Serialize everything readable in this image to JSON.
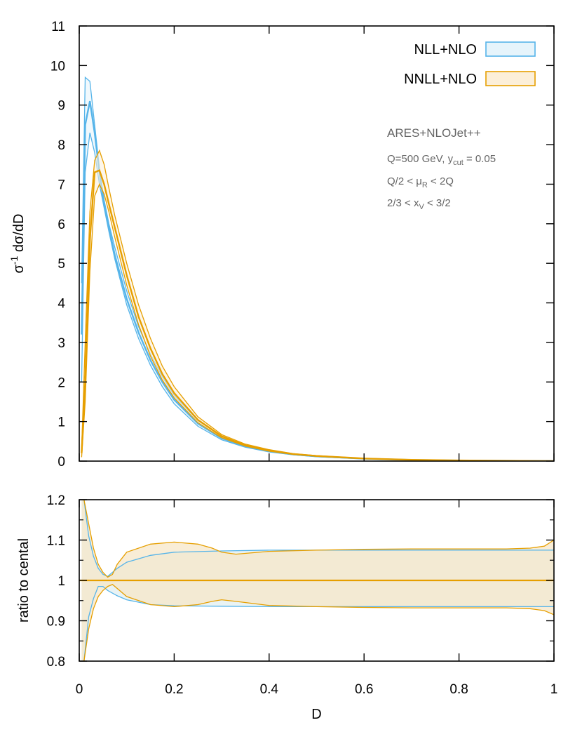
{
  "chart_data": [
    {
      "type": "line",
      "panel": "main",
      "xlim": [
        0,
        1
      ],
      "ylim": [
        0,
        11
      ],
      "ylabel": "σ-1 dσ/dD",
      "ylabel_base": "σ",
      "ylabel_sup": "-1",
      "ylabel_rest": " dσ/dD",
      "xticks": [
        0,
        0.2,
        0.4,
        0.6,
        0.8,
        1
      ],
      "yticks": [
        0,
        1,
        2,
        3,
        4,
        5,
        6,
        7,
        8,
        9,
        10,
        11
      ],
      "yticklabels": [
        "0",
        "1",
        "2",
        "3",
        "4",
        "5",
        "6",
        "7",
        "8",
        "9",
        "10",
        "11"
      ],
      "legend_position": "top-right",
      "grid": false,
      "legend": [
        {
          "name": "NLL+NLO",
          "color": "#56b4e9",
          "fill": "#e6f4fb"
        },
        {
          "name": "NNLL+NLO",
          "color": "#e69f00",
          "fill": "#fcefd9"
        }
      ],
      "annotations": {
        "line1": "ARES+NLOJet++",
        "line2_pre": "Q=500 GeV, y",
        "line2_sub": "cut",
        "line2_post": " = 0.05",
        "line3_pre": "Q/2 < μ",
        "line3_sub": "R",
        "line3_post": " < 2Q",
        "line4_pre": "2/3 < x",
        "line4_sub": "V",
        "line4_post": " < 3/2"
      },
      "series": [
        {
          "name": "NLL+NLO",
          "color": "#56b4e9",
          "fill": "#e6f4fb",
          "x": [
            0.005,
            0.0125,
            0.0225,
            0.0325,
            0.0425,
            0.0525,
            0.0625,
            0.075,
            0.1,
            0.125,
            0.15,
            0.175,
            0.2,
            0.25,
            0.3,
            0.35,
            0.4,
            0.45,
            0.5,
            0.6,
            0.7,
            0.8,
            0.9,
            1.0
          ],
          "central": [
            3.2,
            8.5,
            9.1,
            8.3,
            7.3,
            6.5,
            5.9,
            5.2,
            4.1,
            3.25,
            2.55,
            2.0,
            1.55,
            0.95,
            0.58,
            0.37,
            0.25,
            0.17,
            0.12,
            0.06,
            0.03,
            0.015,
            0.007,
            0.0
          ],
          "upper": [
            4.5,
            9.7,
            9.6,
            8.5,
            7.4,
            6.6,
            6.0,
            5.4,
            4.3,
            3.4,
            2.7,
            2.13,
            1.66,
            1.02,
            0.63,
            0.4,
            0.27,
            0.18,
            0.13,
            0.065,
            0.033,
            0.016,
            0.008,
            0.0
          ],
          "lower": [
            2.0,
            7.3,
            8.3,
            7.8,
            7.0,
            6.4,
            5.8,
            5.1,
            3.95,
            3.1,
            2.42,
            1.88,
            1.45,
            0.88,
            0.54,
            0.35,
            0.23,
            0.16,
            0.11,
            0.055,
            0.028,
            0.014,
            0.006,
            0.0
          ]
        },
        {
          "name": "NNLL+NLO",
          "color": "#e69f00",
          "fill": "#fcefd9",
          "x": [
            0.005,
            0.0125,
            0.0225,
            0.0325,
            0.0425,
            0.0525,
            0.0625,
            0.075,
            0.1,
            0.125,
            0.15,
            0.175,
            0.2,
            0.25,
            0.3,
            0.35,
            0.4,
            0.45,
            0.5,
            0.6,
            0.7,
            0.8,
            0.9,
            1.0
          ],
          "central": [
            0.2,
            2.0,
            5.6,
            7.3,
            7.35,
            7.0,
            6.5,
            5.9,
            4.7,
            3.65,
            2.85,
            2.2,
            1.72,
            1.04,
            0.63,
            0.4,
            0.27,
            0.18,
            0.13,
            0.065,
            0.032,
            0.016,
            0.007,
            0.0
          ],
          "upper": [
            0.3,
            3.0,
            6.3,
            7.6,
            7.85,
            7.5,
            6.9,
            6.2,
            5.0,
            3.95,
            3.1,
            2.4,
            1.88,
            1.12,
            0.67,
            0.43,
            0.29,
            0.19,
            0.14,
            0.07,
            0.035,
            0.017,
            0.008,
            0.0
          ],
          "lower": [
            0.1,
            1.5,
            4.8,
            6.7,
            7.0,
            6.75,
            6.3,
            5.65,
            4.45,
            3.45,
            2.65,
            2.05,
            1.6,
            0.97,
            0.59,
            0.38,
            0.25,
            0.17,
            0.12,
            0.06,
            0.03,
            0.015,
            0.006,
            0.0
          ]
        }
      ]
    },
    {
      "type": "line",
      "panel": "ratio",
      "xlim": [
        0,
        1
      ],
      "ylim": [
        0.8,
        1.2
      ],
      "xlabel": "D",
      "ylabel": "ratio to cental",
      "xticks": [
        0,
        0.2,
        0.4,
        0.6,
        0.8,
        1
      ],
      "xticklabels": [
        "0",
        "0.2",
        "0.4",
        "0.6",
        "0.8",
        "1"
      ],
      "yticks": [
        0.8,
        0.9,
        1.0,
        1.1,
        1.2
      ],
      "yticklabels": [
        "0.8",
        "0.9",
        "1",
        "1.1",
        "1.2"
      ],
      "grid": false,
      "series": [
        {
          "name": "NLL+NLO",
          "color": "#56b4e9",
          "x": [
            0.005,
            0.01,
            0.02,
            0.03,
            0.04,
            0.05,
            0.06,
            0.08,
            0.1,
            0.15,
            0.2,
            0.3,
            0.4,
            0.5,
            0.6,
            0.7,
            0.8,
            0.9,
            1.0
          ],
          "upper": [
            1.25,
            1.2,
            1.11,
            1.06,
            1.03,
            1.015,
            1.01,
            1.03,
            1.045,
            1.062,
            1.07,
            1.073,
            1.075,
            1.075,
            1.075,
            1.075,
            1.075,
            1.075,
            1.075
          ],
          "lower": [
            0.75,
            0.8,
            0.91,
            0.955,
            0.985,
            0.985,
            0.975,
            0.962,
            0.952,
            0.94,
            0.937,
            0.936,
            0.935,
            0.935,
            0.935,
            0.935,
            0.935,
            0.935,
            0.935
          ]
        },
        {
          "name": "NNLL+NLO",
          "color": "#e69f00",
          "x": [
            0.005,
            0.01,
            0.02,
            0.03,
            0.04,
            0.05,
            0.06,
            0.07,
            0.08,
            0.1,
            0.15,
            0.2,
            0.25,
            0.28,
            0.3,
            0.33,
            0.4,
            0.5,
            0.6,
            0.7,
            0.8,
            0.9,
            0.95,
            0.98,
            1.0
          ],
          "upper": [
            1.3,
            1.2,
            1.14,
            1.08,
            1.04,
            1.02,
            1.008,
            1.015,
            1.04,
            1.07,
            1.09,
            1.095,
            1.09,
            1.08,
            1.07,
            1.065,
            1.072,
            1.075,
            1.077,
            1.078,
            1.078,
            1.078,
            1.08,
            1.085,
            1.1
          ],
          "lower": [
            0.7,
            0.8,
            0.88,
            0.93,
            0.96,
            0.975,
            0.985,
            0.99,
            0.98,
            0.96,
            0.94,
            0.935,
            0.94,
            0.948,
            0.952,
            0.948,
            0.938,
            0.935,
            0.933,
            0.932,
            0.932,
            0.932,
            0.93,
            0.925,
            0.915
          ]
        }
      ]
    }
  ]
}
